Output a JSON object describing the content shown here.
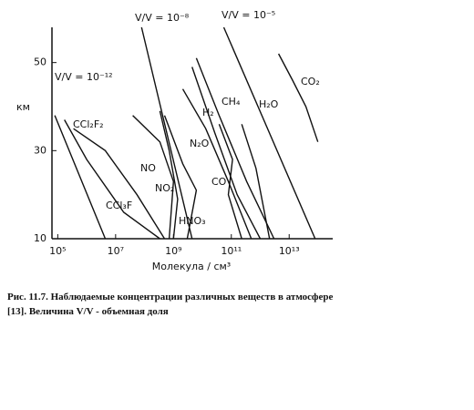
{
  "chart_data": {
    "type": "line",
    "x_label": "Молекула / см³",
    "y_label": "км",
    "x_scale": "log",
    "xlim": [
      63000.0,
      320000000000000.0
    ],
    "ylim": [
      10,
      58
    ],
    "xticks": [
      {
        "value": 100000.0,
        "label": "10⁵"
      },
      {
        "value": 10000000.0,
        "label": "10⁷"
      },
      {
        "value": 1000000000.0,
        "label": "10⁹"
      },
      {
        "value": 100000000000.0,
        "label": "10¹¹"
      },
      {
        "value": 10000000000000.0,
        "label": "10¹³"
      }
    ],
    "yticks": [
      10,
      30,
      50
    ],
    "color": "#111111",
    "series": [
      {
        "name": "V/V = 10⁻¹²",
        "x": [
          79000.0,
          4400000.0
        ],
        "values": [
          38,
          10
        ]
      },
      {
        "name": "V/V = 10⁻⁸",
        "x": [
          79000000.0,
          4400000000.0
        ],
        "values": [
          58,
          10
        ]
      },
      {
        "name": "V/V = 10⁻⁵",
        "x": [
          55000000000.0,
          79000000000000.0
        ],
        "values": [
          58,
          10
        ]
      },
      {
        "name": "CO₂",
        "x": [
          4300000000000.0,
          13000000000000.0,
          38000000000000.0,
          98000000000000.0
        ],
        "values": [
          52,
          46,
          40,
          32
        ]
      },
      {
        "name": "CH₄",
        "x": [
          6200000000.0,
          38000000000.0,
          340000000000.0,
          3000000000000.0
        ],
        "values": [
          51,
          38,
          23,
          10
        ]
      },
      {
        "name": "H₂",
        "x": [
          4400000000.0,
          27000000000.0,
          160000000000.0,
          1000000000000.0
        ],
        "values": [
          49,
          34,
          20,
          10
        ]
      },
      {
        "name": "H₂O",
        "x": [
          230000000000.0,
          710000000000.0,
          2100000000000.0
        ],
        "values": [
          36,
          26,
          10
        ]
      },
      {
        "name": "N₂O",
        "x": [
          2100000000.0,
          13000000000.0,
          79000000000.0,
          490000000000.0
        ],
        "values": [
          44,
          35,
          23,
          10
        ]
      },
      {
        "name": "CO",
        "x": [
          38000000000.0,
          110000000000.0,
          79000000000.0,
          230000000000.0
        ],
        "values": [
          36,
          28,
          20,
          10
        ]
      },
      {
        "name": "CCl₂F₂",
        "x": [
          350000.0,
          4400000.0,
          55000000.0,
          490000000.0
        ],
        "values": [
          35,
          30,
          20,
          10
        ]
      },
      {
        "name": "CCl₃F",
        "x": [
          170000.0,
          1000000.0,
          19000000.0,
          340000000.0
        ],
        "values": [
          37,
          28,
          16,
          10
        ]
      },
      {
        "name": "NO",
        "x": [
          39000000.0,
          340000000.0,
          1000000000.0,
          710000000.0
        ],
        "values": [
          38,
          32,
          23,
          10
        ]
      },
      {
        "name": "NO₂",
        "x": [
          340000000.0,
          710000000.0,
          1400000000.0,
          1000000000.0
        ],
        "values": [
          39,
          30,
          19,
          10
        ]
      },
      {
        "name": "HNO₃",
        "x": [
          490000000.0,
          2100000000.0,
          6200000000.0,
          3000000000.0
        ],
        "values": [
          38,
          27,
          21,
          10
        ]
      }
    ],
    "caption": "Рис. 11.7. Наблюдаемые концентрации различных веществ в атмосфере [13]. Величина V/V - объемная доля"
  }
}
